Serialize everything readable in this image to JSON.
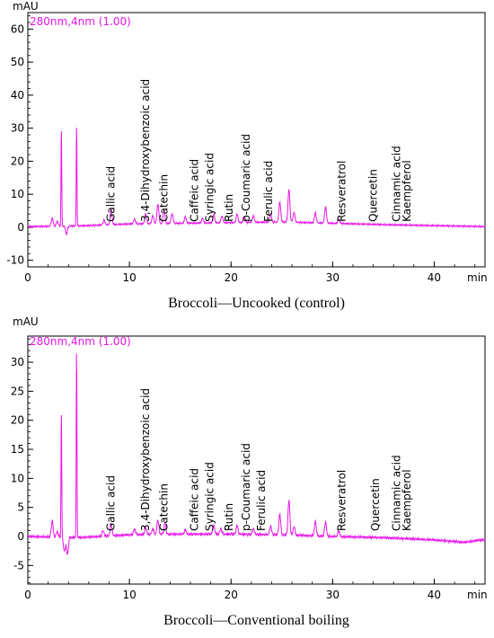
{
  "chart_data": [
    {
      "type": "line",
      "title": "Broccoli—Uncooked (control)",
      "ylabel": "mAU",
      "xlabel": "min",
      "channel_label": "280nm,4nm (1.00)",
      "xlim": [
        0,
        45
      ],
      "ylim": [
        -12,
        65
      ],
      "xticks": [
        0,
        10,
        20,
        30,
        40
      ],
      "yticks": [
        -10,
        0,
        10,
        20,
        30,
        40,
        50,
        60
      ],
      "grid": false,
      "line_color": "#e815e8",
      "series": [
        {
          "baseline": [
            [
              0,
              0.2
            ],
            [
              5,
              0.4
            ],
            [
              10,
              1.0
            ],
            [
              15,
              1.2
            ],
            [
              20,
              1.4
            ],
            [
              25,
              1.6
            ],
            [
              30,
              1.2
            ],
            [
              35,
              0.8
            ],
            [
              40,
              0.5
            ],
            [
              45,
              0.2
            ]
          ],
          "peaks": [
            {
              "t": 2.4,
              "h": 2.5
            },
            {
              "t": 2.9,
              "h": 1.5
            },
            {
              "t": 3.3,
              "h": 30
            },
            {
              "t": 3.8,
              "h": -2.5
            },
            {
              "t": 4.8,
              "h": 31
            },
            {
              "t": 7.5,
              "h": 1.5
            },
            {
              "t": 8.2,
              "h": 4.5
            },
            {
              "t": 10.5,
              "h": 1.5
            },
            {
              "t": 11.6,
              "h": 3
            },
            {
              "t": 12.3,
              "h": 2.5
            },
            {
              "t": 12.8,
              "h": 6
            },
            {
              "t": 13.4,
              "h": 4
            },
            {
              "t": 14.2,
              "h": 3
            },
            {
              "t": 15.5,
              "h": 2
            },
            {
              "t": 17.2,
              "h": 1.5
            },
            {
              "t": 18.3,
              "h": 2.5
            },
            {
              "t": 19.1,
              "h": 2
            },
            {
              "t": 20.6,
              "h": 2.5
            },
            {
              "t": 21.3,
              "h": 2
            },
            {
              "t": 22.2,
              "h": 2
            },
            {
              "t": 23.9,
              "h": 2.5
            },
            {
              "t": 24.8,
              "h": 6
            },
            {
              "t": 25.7,
              "h": 10
            },
            {
              "t": 26.2,
              "h": 3
            },
            {
              "t": 28.3,
              "h": 3
            },
            {
              "t": 29.3,
              "h": 5
            },
            {
              "t": 30.6,
              "h": 1.2
            }
          ],
          "noise_amp": 0.3
        }
      ],
      "annotations": [
        {
          "label": "Gallic acid",
          "t": 8.2
        },
        {
          "label": "3,4-Dihydroxybenzoic acid",
          "t": 11.6
        },
        {
          "label": "Catechin",
          "t": 13.4
        },
        {
          "label": "Caffeic acid",
          "t": 16.4
        },
        {
          "label": "Syringic acid",
          "t": 17.9
        },
        {
          "label": "Rutin",
          "t": 19.8
        },
        {
          "label": "p-Coumaric acid",
          "t": 21.5
        },
        {
          "label": "Ferulic acid",
          "t": 23.7
        },
        {
          "label": "Resveratrol",
          "t": 30.9
        },
        {
          "label": "Quercetin",
          "t": 34.0
        },
        {
          "label": "Cinnamic acid",
          "t": 36.3
        },
        {
          "label": "Kaempferol",
          "t": 37.3
        }
      ]
    },
    {
      "type": "line",
      "title": "Broccoli—Conventional boiling",
      "ylabel": "mAU",
      "xlabel": "min",
      "channel_label": "280nm,4nm (1.00)",
      "xlim": [
        0,
        45
      ],
      "ylim": [
        -8.2,
        34.5
      ],
      "xticks": [
        0,
        10,
        20,
        30,
        40
      ],
      "yticks": [
        -5,
        0,
        5,
        10,
        15,
        20,
        25,
        30
      ],
      "grid": false,
      "line_color": "#e815e8",
      "series": [
        {
          "baseline": [
            [
              0,
              0.0
            ],
            [
              5,
              -0.2
            ],
            [
              10,
              0.3
            ],
            [
              15,
              0.4
            ],
            [
              20,
              0.4
            ],
            [
              25,
              0.3
            ],
            [
              30,
              0.0
            ],
            [
              35,
              -0.2
            ],
            [
              40,
              -0.6
            ],
            [
              43,
              -1.0
            ],
            [
              45,
              -0.5
            ]
          ],
          "peaks": [
            {
              "t": 2.4,
              "h": 2.8
            },
            {
              "t": 2.9,
              "h": 1.0
            },
            {
              "t": 3.3,
              "h": 22
            },
            {
              "t": 3.6,
              "h": -2.5
            },
            {
              "t": 3.9,
              "h": -3.0
            },
            {
              "t": 4.8,
              "h": 33
            },
            {
              "t": 7.4,
              "h": 1.0
            },
            {
              "t": 8.2,
              "h": 2.0
            },
            {
              "t": 10.5,
              "h": 1.0
            },
            {
              "t": 11.6,
              "h": 1.2
            },
            {
              "t": 12.3,
              "h": 1.0
            },
            {
              "t": 12.8,
              "h": 2.5
            },
            {
              "t": 13.5,
              "h": 2.0
            },
            {
              "t": 15.5,
              "h": 0.8
            },
            {
              "t": 18.3,
              "h": 1.5
            },
            {
              "t": 19.0,
              "h": 1.0
            },
            {
              "t": 20.6,
              "h": 1.5
            },
            {
              "t": 22.2,
              "h": 1.0
            },
            {
              "t": 23.9,
              "h": 1.5
            },
            {
              "t": 24.8,
              "h": 3.5
            },
            {
              "t": 25.7,
              "h": 6
            },
            {
              "t": 26.2,
              "h": 1.5
            },
            {
              "t": 28.3,
              "h": 2.5
            },
            {
              "t": 29.3,
              "h": 2.5
            },
            {
              "t": 30.6,
              "h": 1.0
            }
          ],
          "noise_amp": 0.25
        }
      ],
      "annotations": [
        {
          "label": "Gallic acid",
          "t": 8.2
        },
        {
          "label": "3,4-Dihydroxybenzoic acid",
          "t": 11.6
        },
        {
          "label": "Catechin",
          "t": 13.4
        },
        {
          "label": "Caffeic acid",
          "t": 16.4
        },
        {
          "label": "Syringic acid",
          "t": 17.9
        },
        {
          "label": "Rutin",
          "t": 19.8
        },
        {
          "label": "p-Coumaric acid",
          "t": 21.5
        },
        {
          "label": "Ferulic acid",
          "t": 23.0
        },
        {
          "label": "Resveratrol",
          "t": 30.9
        },
        {
          "label": "Quercetin",
          "t": 34.2
        },
        {
          "label": "Cinnamic acid",
          "t": 36.3
        },
        {
          "label": "Kaempferol",
          "t": 37.3
        }
      ]
    }
  ]
}
